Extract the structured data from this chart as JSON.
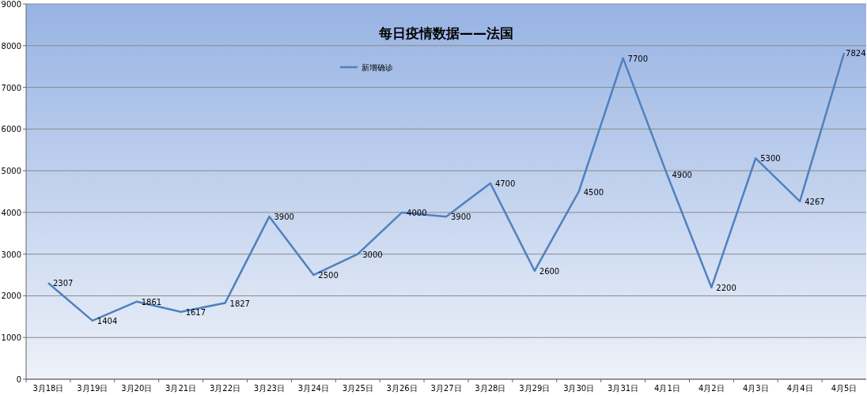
{
  "chart_data": {
    "type": "line",
    "title": "每日疫情数据——法国",
    "categories": [
      "3月18日",
      "3月19日",
      "3月20日",
      "3月21日",
      "3月22日",
      "3月23日",
      "3月24日",
      "3月25日",
      "3月26日",
      "3月27日",
      "3月28日",
      "3月29日",
      "3月30日",
      "3月31日",
      "4月1日",
      "4月2日",
      "4月3日",
      "4月4日",
      "4月5日"
    ],
    "series": [
      {
        "name": "新增确诊",
        "color": "#4f81bd",
        "values": [
          2307,
          1404,
          1861,
          1617,
          1827,
          3900,
          2500,
          3000,
          4000,
          3900,
          4700,
          2600,
          4500,
          7700,
          4900,
          2200,
          5300,
          4267,
          7824
        ]
      }
    ],
    "ylim": [
      0,
      9000
    ],
    "yticks": [
      0,
      1000,
      2000,
      3000,
      4000,
      5000,
      6000,
      7000,
      8000,
      9000
    ],
    "grid": "y",
    "legend": "top",
    "data_labels": true,
    "marker": "none"
  }
}
